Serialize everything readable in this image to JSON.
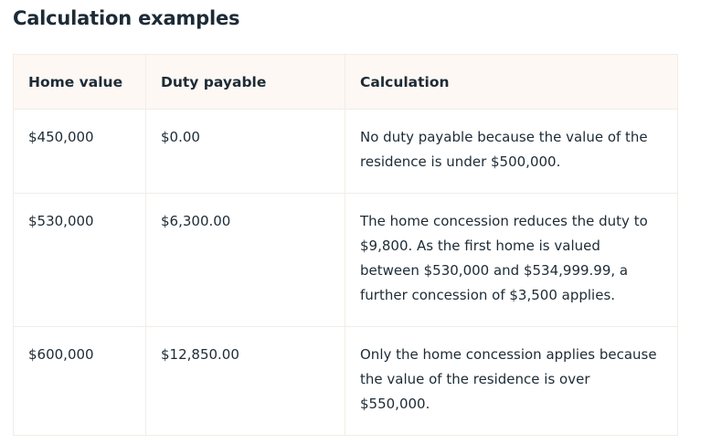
{
  "title": "Calculation examples",
  "table": {
    "headers": [
      "Home value",
      "Duty payable",
      "Calculation"
    ],
    "rows": [
      [
        "$450,000",
        "$0.00",
        "No duty payable because the value of the residence is under $500,000."
      ],
      [
        "$530,000",
        "$6,300.00",
        "The home concession reduces the duty to $9,800. As the first home is valued between $530,000 and $534,999.99, a further concession of $3,500 applies."
      ],
      [
        "$600,000",
        "$12,850.00",
        "Only the home concession applies because the value of the residence is over $550,000."
      ]
    ]
  }
}
